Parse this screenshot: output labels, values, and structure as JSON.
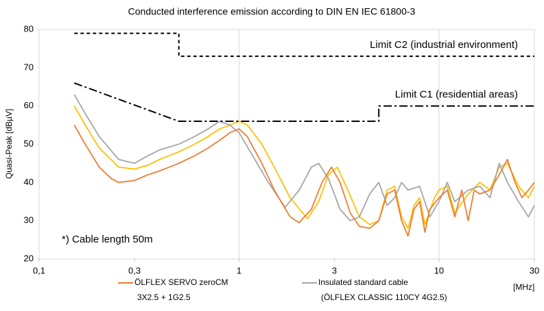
{
  "chart_data": {
    "type": "line",
    "title": "Conducted interference emission according to DIN EN IEC 61800-3",
    "y_label": "Quasi-Peak [dBµV]",
    "x_label": "[MHz]",
    "note": "*) Cable length 50m",
    "x_scale": "log",
    "xlim": [
      0.1,
      30
    ],
    "ylim": [
      20,
      80
    ],
    "xticks": [
      {
        "value": 0.1,
        "label": "0,1"
      },
      {
        "value": 0.3,
        "label": "0,3"
      },
      1,
      3,
      10,
      30
    ],
    "xgrid": [
      0.1,
      1,
      10,
      30
    ],
    "yticks": [
      20,
      30,
      40,
      50,
      60,
      70,
      80
    ],
    "series": [
      {
        "name": "ÖLFLEX SERVO zeroCM",
        "name_detail": "3X2.5 + 1G2.5",
        "color": "#ed7d31",
        "x": [
          0.15,
          0.17,
          0.2,
          0.23,
          0.25,
          0.3,
          0.35,
          0.4,
          0.5,
          0.6,
          0.7,
          0.8,
          0.9,
          1.0,
          1.1,
          1.3,
          1.5,
          1.8,
          2.0,
          2.3,
          2.6,
          2.9,
          3.2,
          3.6,
          4.0,
          4.5,
          5.0,
          5.5,
          6.0,
          6.5,
          7.0,
          7.5,
          8.0,
          8.5,
          9.0,
          10,
          11,
          12,
          13,
          14,
          15,
          16,
          18,
          20,
          22,
          24,
          26,
          28,
          30
        ],
        "values": [
          55,
          50,
          44,
          41,
          40,
          40.5,
          42,
          43,
          45,
          47,
          49,
          51,
          53,
          54,
          52,
          45,
          38,
          31,
          29.5,
          33,
          40,
          44,
          40,
          32,
          28.5,
          28,
          30,
          37,
          38,
          30,
          26,
          33,
          35,
          27,
          33,
          36,
          38,
          31,
          38,
          30,
          38,
          37,
          38,
          42,
          46,
          40,
          36,
          38,
          40
        ]
      },
      {
        "name": "Insulated standard cable",
        "name_detail": "(ÖLFLEX CLASSIC 110CY 4G2.5)",
        "color": "#a5a5a5",
        "x": [
          0.15,
          0.17,
          0.2,
          0.25,
          0.3,
          0.35,
          0.4,
          0.5,
          0.6,
          0.7,
          0.8,
          0.9,
          1.0,
          1.2,
          1.4,
          1.7,
          2.0,
          2.3,
          2.5,
          2.8,
          3.2,
          3.6,
          4.0,
          4.5,
          5.0,
          5.5,
          6.0,
          6.5,
          7.0,
          8.0,
          9.0,
          10,
          11,
          12,
          14,
          16,
          18,
          20,
          22,
          25,
          28,
          30
        ],
        "values": [
          63,
          58,
          52,
          46,
          45,
          47,
          48.5,
          50,
          52,
          54,
          56,
          55,
          53,
          46,
          40,
          33.5,
          38,
          44,
          45,
          41,
          33,
          30,
          31,
          37,
          40,
          34,
          36,
          40,
          38,
          39,
          31,
          35,
          40,
          35,
          38,
          39,
          36,
          45,
          40,
          35,
          31,
          34
        ]
      },
      {
        "color": "#ffc000",
        "x": [
          0.15,
          0.17,
          0.2,
          0.25,
          0.3,
          0.35,
          0.4,
          0.5,
          0.6,
          0.7,
          0.8,
          0.9,
          1.0,
          1.1,
          1.3,
          1.5,
          1.8,
          2.2,
          2.5,
          2.8,
          3.1,
          3.5,
          4.0,
          4.5,
          5.0,
          5.5,
          6.0,
          6.5,
          7.0,
          7.5,
          8.0,
          8.5,
          9.5,
          10,
          11,
          12,
          14,
          16,
          18,
          20,
          22,
          25,
          28,
          30
        ],
        "values": [
          60,
          55,
          49,
          44,
          43.5,
          44.5,
          46,
          48,
          50,
          52,
          54,
          55,
          56,
          55,
          50,
          44,
          36,
          30.5,
          35,
          42,
          44,
          38,
          31,
          29,
          30,
          38,
          39,
          31,
          28,
          34,
          36,
          29,
          36,
          38,
          39,
          32,
          37,
          40,
          38,
          44,
          45,
          39,
          36,
          39
        ]
      },
      {
        "label": "Limit C2 (industrial environment)",
        "color": "#000000",
        "dash": "5,4",
        "x": [
          0.15,
          0.5,
          0.5,
          30
        ],
        "values": [
          79,
          79,
          73,
          73
        ]
      },
      {
        "label": "Limit C1 (residential areas)",
        "color": "#000000",
        "dash": "12,4,3,4",
        "x": [
          0.15,
          0.5,
          5,
          5,
          30
        ],
        "values": [
          66,
          56,
          56,
          60,
          60
        ]
      }
    ]
  }
}
